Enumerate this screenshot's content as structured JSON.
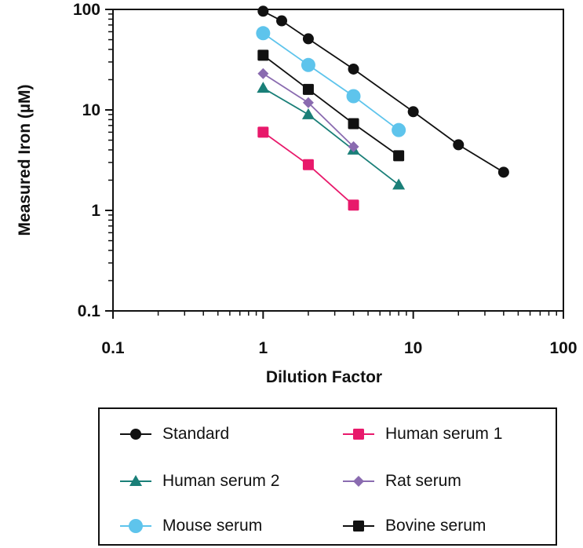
{
  "chart_data": {
    "type": "scatter",
    "title": "",
    "xlabel": "Dilution Factor",
    "ylabel": "Measured Iron (µM)",
    "x_scale": "log",
    "y_scale": "log",
    "xlim": [
      0.1,
      100
    ],
    "ylim": [
      0.1,
      100
    ],
    "x_tick_labels": [
      "0.1",
      "1",
      "10",
      "100"
    ],
    "y_tick_labels": [
      "0.1",
      "1",
      "10",
      "100"
    ],
    "grid": false,
    "legend_position": "bottom",
    "series": [
      {
        "name": "Standard",
        "color": "#111111",
        "marker": "circle",
        "x": [
          1,
          1.33,
          2,
          4,
          10,
          20,
          40
        ],
        "y": [
          96,
          77,
          51,
          25.5,
          9.6,
          4.5,
          2.4
        ]
      },
      {
        "name": "Human serum 1",
        "color": "#e8196b",
        "marker": "square",
        "x": [
          1,
          2,
          4
        ],
        "y": [
          6.0,
          2.85,
          1.13
        ]
      },
      {
        "name": "Human serum 2",
        "color": "#1a7f78",
        "marker": "triangle",
        "x": [
          1,
          2,
          4,
          8
        ],
        "y": [
          16.5,
          9.0,
          4.0,
          1.8
        ]
      },
      {
        "name": "Rat serum",
        "color": "#8a6bb0",
        "marker": "diamond",
        "x": [
          1,
          2,
          4
        ],
        "y": [
          23,
          11.8,
          4.3
        ]
      },
      {
        "name": "Mouse serum",
        "color": "#5ec4ec",
        "marker": "big-circle",
        "x": [
          1,
          2,
          4,
          8
        ],
        "y": [
          58,
          28,
          13.7,
          6.3
        ]
      },
      {
        "name": "Bovine serum",
        "color": "#111111",
        "marker": "square",
        "x": [
          1,
          2,
          4,
          8
        ],
        "y": [
          35,
          16,
          7.3,
          3.5
        ]
      }
    ]
  }
}
